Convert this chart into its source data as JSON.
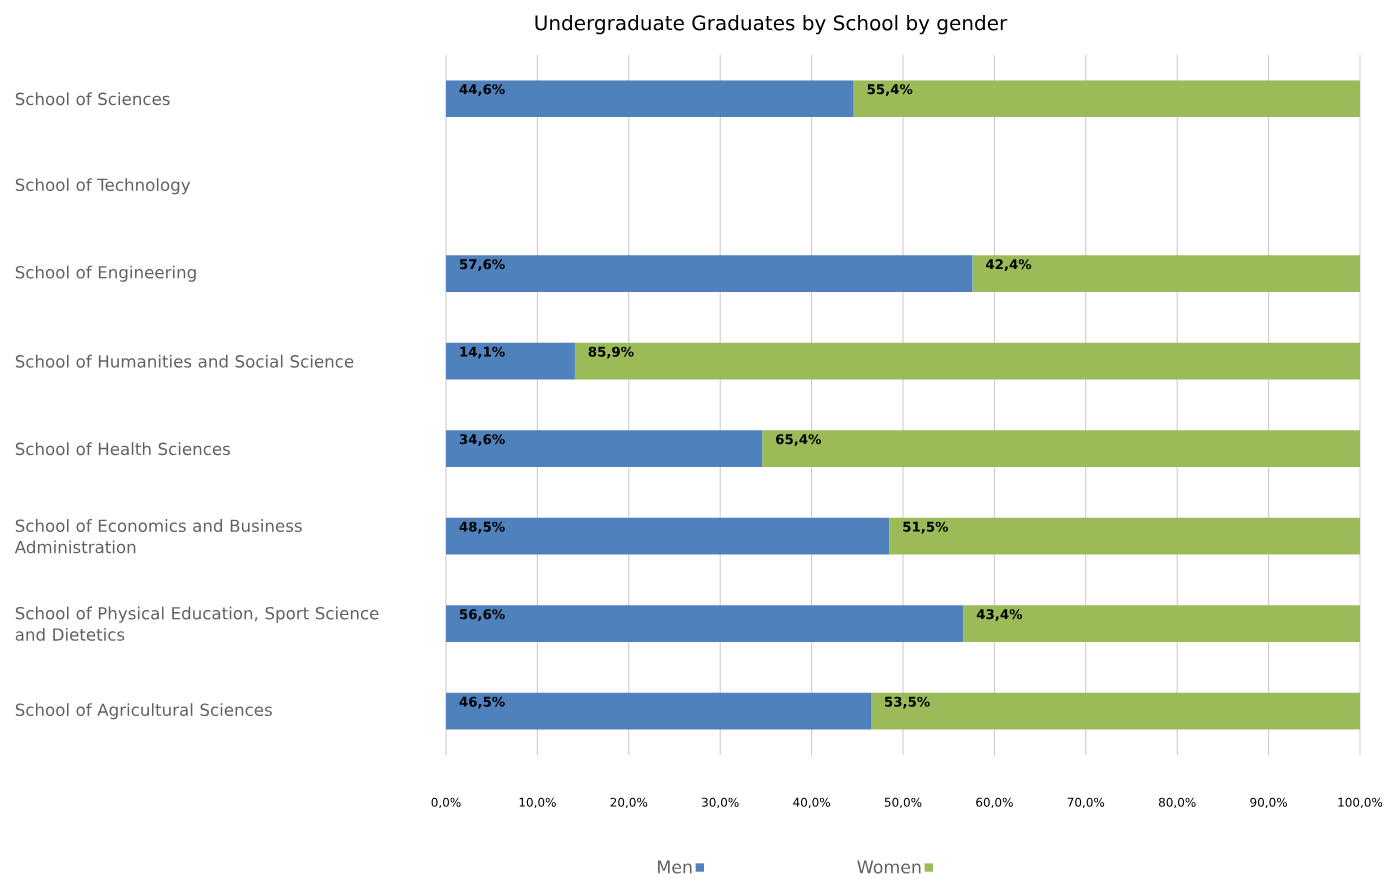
{
  "chart_data": {
    "type": "bar",
    "title": "Undergraduate Graduates by School by gender",
    "orientation": "horizontal",
    "stacked": true,
    "categories": [
      "School of Sciences",
      "School of Technology",
      "School of Engineering",
      "School of Humanities and Social Science",
      "School of Health Sciences",
      "School of Economics and Business Administration",
      "School of Physical Education, Sport Science and Dietetics",
      "School of Agricultural Sciences"
    ],
    "series": [
      {
        "name": "Men",
        "color": "#4f81bd",
        "values": [
          44.6,
          null,
          57.6,
          14.1,
          34.6,
          48.5,
          56.6,
          46.5
        ],
        "value_labels": [
          "44,6%",
          null,
          "57,6%",
          "14,1%",
          "34,6%",
          "48,5%",
          "56,6%",
          "46,5%"
        ]
      },
      {
        "name": "Women",
        "color": "#9bbb59",
        "values": [
          55.4,
          null,
          42.4,
          85.9,
          65.4,
          51.5,
          43.4,
          53.5
        ],
        "value_labels": [
          "55,4%",
          null,
          "42,4%",
          "85,9%",
          "65,4%",
          "51,5%",
          "43,4%",
          "53,5%"
        ]
      }
    ],
    "xlim": [
      0,
      100
    ],
    "xticks": [
      {
        "value": 0,
        "label": "0,0%"
      },
      {
        "value": 10,
        "label": "10,0%"
      },
      {
        "value": 20,
        "label": "20,0%"
      },
      {
        "value": 30,
        "label": "30,0%"
      },
      {
        "value": 40,
        "label": "40,0%"
      },
      {
        "value": 50,
        "label": "50,0%"
      },
      {
        "value": 60,
        "label": "60,0%"
      },
      {
        "value": 70,
        "label": "70,0%"
      },
      {
        "value": 80,
        "label": "80,0%"
      },
      {
        "value": 90,
        "label": "90,0%"
      },
      {
        "value": 100,
        "label": "100,0%"
      }
    ],
    "grid": "x",
    "legend": "bottom"
  }
}
